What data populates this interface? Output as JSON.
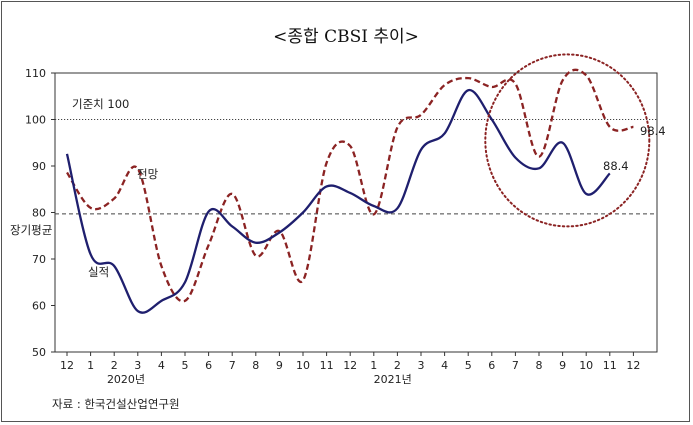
{
  "chart_data": {
    "type": "line",
    "title": "<종합 CBSI 추이>",
    "x_tick_labels": [
      "12",
      "1",
      "2",
      "3",
      "4",
      "5",
      "6",
      "7",
      "8",
      "9",
      "10",
      "11",
      "12",
      "1",
      "2",
      "3",
      "4",
      "5",
      "6",
      "7",
      "8",
      "9",
      "10",
      "11",
      "12"
    ],
    "year_labels": [
      {
        "label": "2020년",
        "index": 2.5
      },
      {
        "label": "2021년",
        "index": 13.8
      }
    ],
    "ylim": [
      50,
      110
    ],
    "y_ticks": [
      50,
      60,
      70,
      80,
      90,
      100,
      110
    ],
    "series": [
      {
        "name": "실적",
        "style": "solid",
        "color": "#1f1f6e",
        "values": [
          92.6,
          71.0,
          68.5,
          58.8,
          61.0,
          65.0,
          80.2,
          77.0,
          73.5,
          75.7,
          80.0,
          85.6,
          84.2,
          81.4,
          80.9,
          93.5,
          97.0,
          106.3,
          100.0,
          91.8,
          89.5,
          95.0,
          84.0,
          88.4
        ]
      },
      {
        "name": "전망",
        "style": "dashed",
        "color": "#8b2323",
        "values": [
          88.6,
          81.0,
          83.0,
          89.4,
          68.5,
          61.0,
          73.0,
          84.0,
          70.7,
          76.0,
          65.4,
          90.7,
          94.3,
          79.6,
          98.3,
          101.0,
          107.4,
          108.9,
          107.0,
          107.7,
          92.0,
          108.4,
          109.5,
          98.4,
          98.4
        ]
      }
    ],
    "reference_lines": [
      {
        "label": "기준치 100",
        "value": 100,
        "style": "dotted"
      },
      {
        "label": "장기평균",
        "value": 79.7,
        "style": "dashed"
      }
    ],
    "end_labels": {
      "forecast": "98.4",
      "actual": "88.4"
    },
    "source": "자료 : 한국건설산업연구원",
    "colors": {
      "actual": "#1f1f6e",
      "forecast": "#8b2323",
      "highlight_circle": "#8b2323"
    }
  }
}
